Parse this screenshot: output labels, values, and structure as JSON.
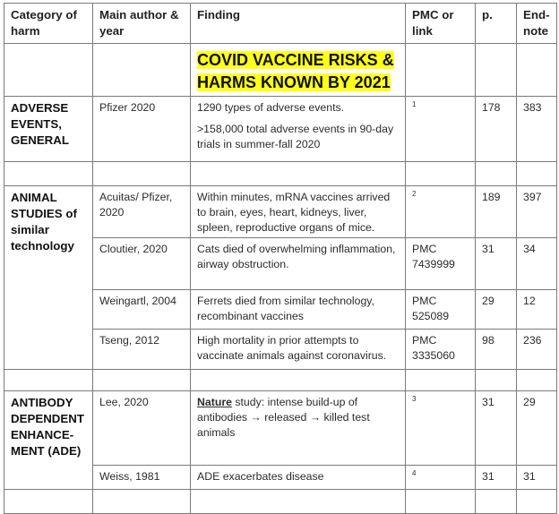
{
  "header": {
    "category": "Category of harm",
    "author": "Main author & year",
    "finding": "Finding",
    "pmc": "PMC or link",
    "page": "p.",
    "endnote": "End-note"
  },
  "title": {
    "line1": "COVID VACCINE RISKS &",
    "line2": "HARMS KNOWN BY 2021",
    "highlight_color": "#ffff1a"
  },
  "sections": {
    "adverse": {
      "category": "ADVERSE EVENTS, GENERAL",
      "rows": [
        {
          "author": "Pfizer 2020",
          "finding1": "1290 types of adverse events.",
          "finding2": ">158,000 total adverse events in 90-day trials in summer-fall 2020",
          "pmc": "1",
          "page": "178",
          "endnote": "383"
        }
      ]
    },
    "animal": {
      "category": "ANIMAL STUDIES of similar technology",
      "rows": [
        {
          "author": "Acuitas/ Pfizer, 2020",
          "finding": "Within minutes, mRNA vaccines arrived to brain, eyes, heart, kidneys, liver, spleen, reproductive organs of mice.",
          "pmc": "2",
          "page": "189",
          "endnote": "397"
        },
        {
          "author": "Cloutier, 2020",
          "finding": "Cats died of overwhelming inflammation, airway obstruction.",
          "pmc": "PMC 7439999",
          "page": "31",
          "endnote": "34"
        },
        {
          "author": "Weingartl, 2004",
          "finding": "Ferrets died from similar technology, recombinant vaccines",
          "pmc": "PMC 525089",
          "page": "29",
          "endnote": "12"
        },
        {
          "author": "Tseng, 2012",
          "finding": "High mortality in prior attempts to vaccinate animals against coronavirus.",
          "pmc": "PMC 3335060",
          "page": "98",
          "endnote": "236"
        }
      ]
    },
    "ade": {
      "category": "ANTIBODY DEPENDENT ENHANCE-MENT (ADE)",
      "rows": [
        {
          "author": "Lee, 2020",
          "finding_bold": "Nature",
          "finding": " study:  intense build-up of antibodies → released → killed test animals",
          "pmc": "3",
          "page": "31",
          "endnote": "29"
        },
        {
          "author": "Weiss, 1981",
          "finding": "ADE exacerbates disease",
          "pmc": "4",
          "page": "31",
          "endnote": "31"
        }
      ]
    }
  }
}
